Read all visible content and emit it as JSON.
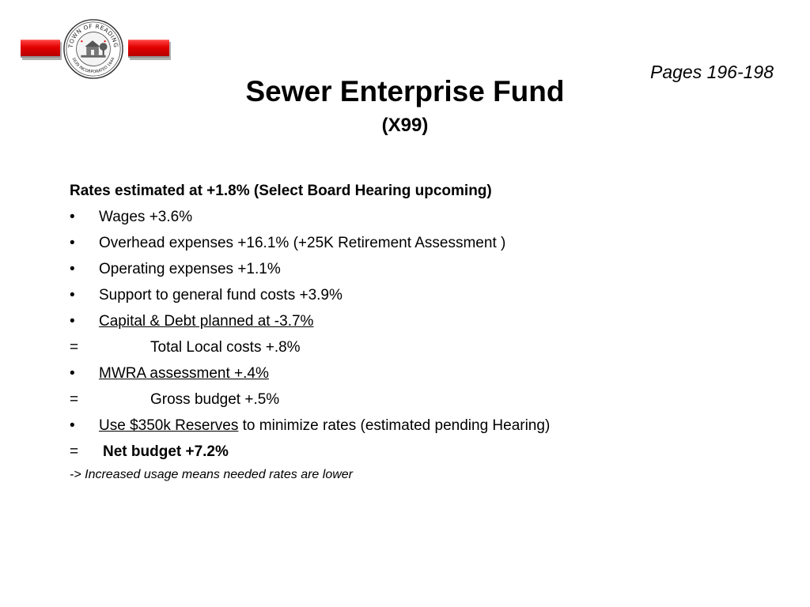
{
  "header": {
    "pages_ref": "Pages 196-198",
    "title": "Sewer Enterprise Fund",
    "subtitle": "(X99)"
  },
  "seal": {
    "top_text": "TOWN OF READING",
    "bottom_text": "1639 INCORPORATED 1644",
    "accent_color": "#e00000"
  },
  "content": {
    "heading": "Rates estimated at +1.8% (Select Board Hearing upcoming)",
    "bullet_marker": "•",
    "equals_marker": "=",
    "items": [
      {
        "text": "Wages +3.6%"
      },
      {
        "text": "Overhead expenses +16.1% (+25K Retirement Assessment )"
      },
      {
        "text": "Operating expenses +1.1%"
      },
      {
        "text": "Support to general fund costs +3.9%"
      },
      {
        "text": "Capital & Debt planned at -3.7%"
      }
    ],
    "total_local": "Total Local costs +.8%",
    "mwra": "MWRA assessment +.4%",
    "gross": "Gross budget +.5%",
    "reserves_link": "Use $350k Reserves",
    "reserves_rest": " to minimize rates (estimated pending Hearing)",
    "net_budget": "Net budget +7.2%",
    "note": "-> Increased usage means needed rates are lower"
  }
}
